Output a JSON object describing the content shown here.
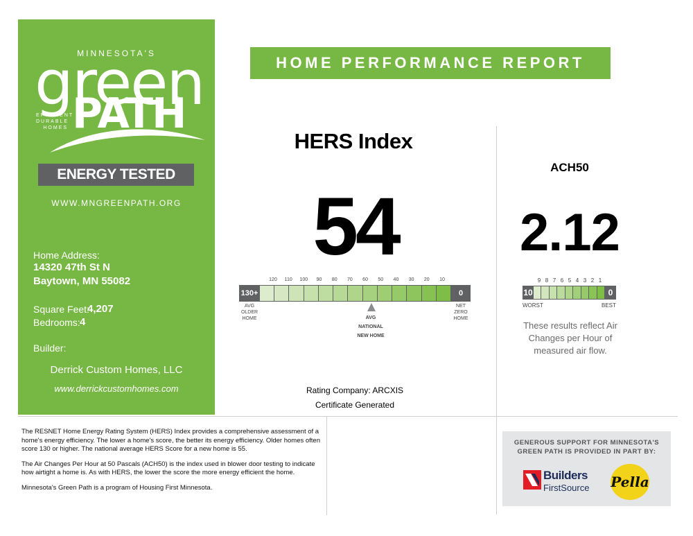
{
  "brand": {
    "minnesotas": "MINNESOTA'S",
    "green": "green",
    "path": "PATH",
    "registered": "®",
    "tagline": [
      "EFFICIENT",
      "DURABLE",
      "HOMES"
    ],
    "energy_tested": "ENERGY TESTED",
    "website": "WWW.MNGREENPATH.ORG",
    "color": "#76b843"
  },
  "home": {
    "address_label": "Home Address:",
    "address_line1": "14320 47th St N",
    "address_line2": "Baytown, MN 55082",
    "sqft_label": "Square Feet:",
    "sqft_value": "4,207",
    "bedrooms_label": "Bedrooms:",
    "bedrooms_value": "4",
    "builder_label": "Builder:",
    "builder_name": "Derrick Custom Homes, LLC",
    "builder_url": "www.derrickcustomhomes.com"
  },
  "report_title": "HOME PERFORMANCE REPORT",
  "hers": {
    "title": "HERS Index",
    "score": "54",
    "scale_left": "130+",
    "scale_right": "0",
    "ticks": [
      "120",
      "110",
      "100",
      "90",
      "80",
      "70",
      "60",
      "50",
      "40",
      "30",
      "20",
      "10"
    ],
    "caption_left": [
      "AVG",
      "OLDER",
      "HOME"
    ],
    "caption_right": [
      "NET",
      "ZERO",
      "HOME"
    ],
    "caption_middle": [
      "AVG",
      "NATIONAL",
      "NEW HOME"
    ],
    "national_avg_marker": 55,
    "rating_company": "Rating Company: ARCXIS",
    "certificate": "Certificate Generated"
  },
  "ach": {
    "title": "ACH50",
    "value": "2.12",
    "scale_left": "10",
    "scale_right": "0",
    "ticks": [
      "9",
      "8",
      "7",
      "6",
      "5",
      "4",
      "3",
      "2",
      "1"
    ],
    "worst": "WORST",
    "best": "BEST",
    "note": "These results reflect Air Changes per Hour of measured air flow."
  },
  "info": {
    "p1": "The RESNET Home Energy Rating System (HERS) Index provides a comprehensive assessment of a home's energy efficiency. The lower a home's score, the better its energy efficiency. Older homes often score 130 or higher. The national average HERS Score for a new home is 55.",
    "p2": "The Air Changes Per Hour at 50 Pascals (ACH50) is the index used in blower door testing to indicate how airtight a home is. As with HERS, the lower the score the more energy efficient the home.",
    "p3": "Minnesota's Green Path is a program of Housing First Minnesota."
  },
  "sponsors": {
    "header": "GENEROUS SUPPORT FOR MINNESOTA'S GREEN PATH IS PROVIDED IN PART BY:",
    "builders_line1": "Builders",
    "builders_line2": "FirstSource",
    "pella": "Pella"
  }
}
